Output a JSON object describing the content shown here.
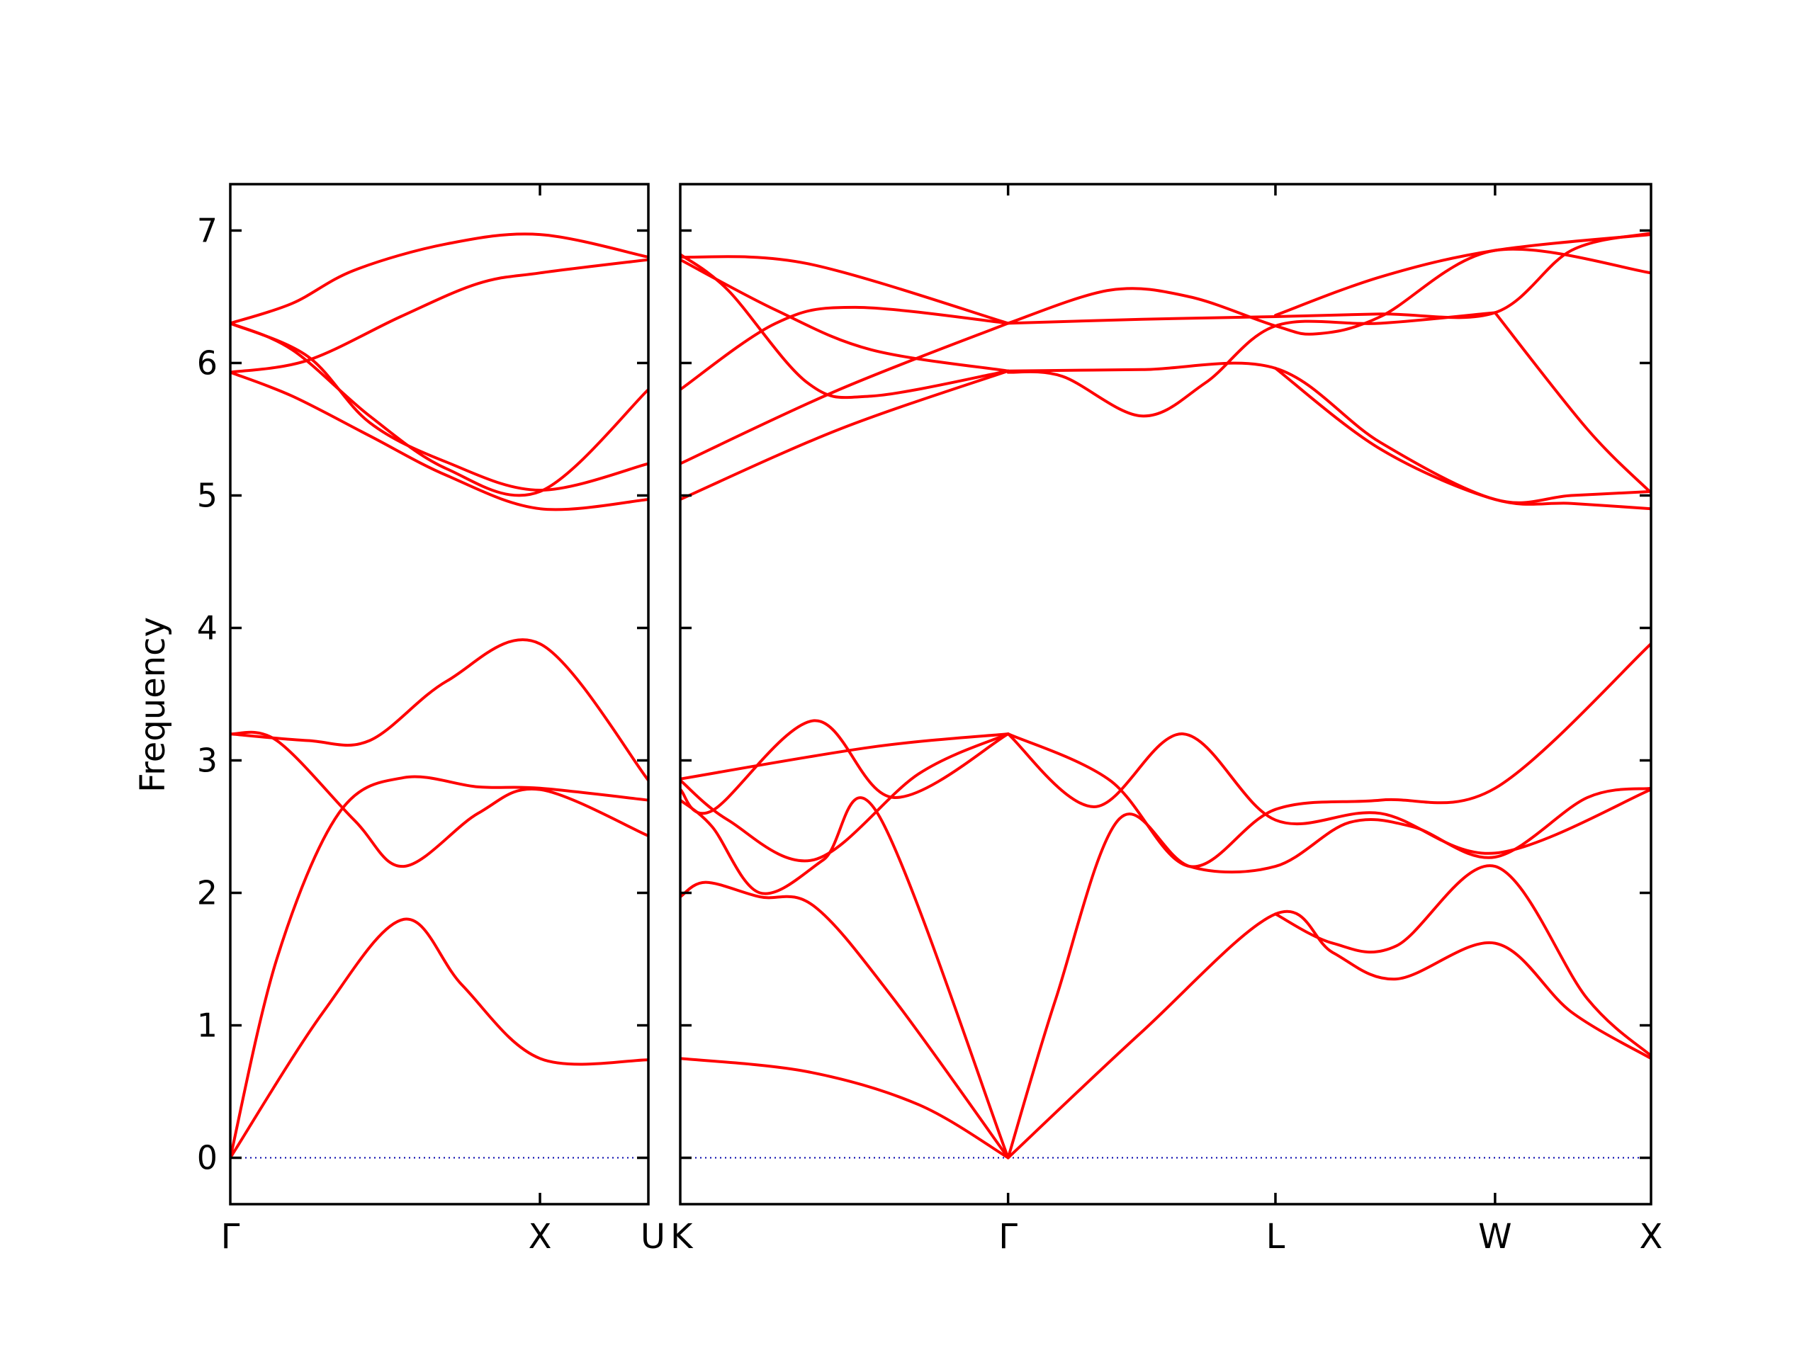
{
  "colors": {
    "band": "#ff0000",
    "zero_line": "#0000aa",
    "frame": "#000000"
  },
  "chart_data": {
    "type": "line",
    "title": "",
    "ylabel": "Frequency",
    "ylim": [
      -0.35,
      7.35
    ],
    "yticks": [
      0,
      1,
      2,
      3,
      4,
      5,
      6,
      7
    ],
    "grid": false,
    "legend": "none",
    "zero_line": {
      "y": 0,
      "style": "dotted"
    },
    "panels": [
      {
        "id": "gamma-x-u",
        "xlim": [
          0,
          1.35
        ],
        "kpoints": [
          {
            "label": "Γ",
            "x": 0
          },
          {
            "label": "X",
            "x": 1.0
          },
          {
            "label": "U",
            "x": 1.35
          }
        ],
        "bands": [
          {
            "x": [
              0,
              0.3,
              0.56,
              0.75,
              1.0,
              1.35
            ],
            "y": [
              0,
              1.1,
              1.8,
              1.3,
              0.75,
              0.74
            ]
          },
          {
            "x": [
              0,
              0.15,
              0.35,
              0.56,
              0.8,
              1.0,
              1.35
            ],
            "y": [
              0,
              1.5,
              2.6,
              2.87,
              2.8,
              2.79,
              2.7
            ]
          },
          {
            "x": [
              0,
              0.15,
              0.4,
              0.56,
              0.8,
              1.0,
              1.35
            ],
            "y": [
              3.2,
              3.15,
              2.55,
              2.2,
              2.6,
              2.78,
              2.43
            ]
          },
          {
            "x": [
              0,
              0.25,
              0.45,
              0.7,
              1.0,
              1.35
            ],
            "y": [
              3.2,
              3.15,
              3.15,
              3.6,
              3.88,
              2.85
            ]
          },
          {
            "x": [
              0,
              0.2,
              0.45,
              0.7,
              1.0,
              1.35
            ],
            "y": [
              5.93,
              5.75,
              5.45,
              5.15,
              4.9,
              4.97
            ]
          },
          {
            "x": [
              0,
              0.25,
              0.45,
              0.7,
              1.0,
              1.35
            ],
            "y": [
              6.3,
              6.05,
              5.55,
              5.25,
              5.04,
              5.24
            ]
          },
          {
            "x": [
              0,
              0.25,
              0.55,
              0.8,
              1.0,
              1.35
            ],
            "y": [
              5.93,
              6.02,
              6.35,
              6.6,
              6.68,
              6.78
            ]
          },
          {
            "x": [
              0,
              0.2,
              0.4,
              0.7,
              1.0,
              1.35
            ],
            "y": [
              6.3,
              6.45,
              6.7,
              6.9,
              6.97,
              6.8
            ]
          },
          {
            "x": [
              0,
              0.2,
              0.45,
              0.7,
              1.0,
              1.35
            ],
            "y": [
              6.3,
              6.1,
              5.6,
              5.2,
              5.03,
              5.8
            ]
          }
        ]
      },
      {
        "id": "k-gamma-l-w-x",
        "xlim": [
          0,
          3.05
        ],
        "kpoints": [
          {
            "label": "K",
            "x": 0
          },
          {
            "label": "Γ",
            "x": 1.03
          },
          {
            "label": "L",
            "x": 1.87
          },
          {
            "label": "W",
            "x": 2.56
          },
          {
            "label": "X",
            "x": 3.05
          }
        ],
        "bands": [
          {
            "x": [
              0,
              0.4,
              0.75,
              1.03
            ],
            "y": [
              0.75,
              0.65,
              0.4,
              0
            ]
          },
          {
            "x": [
              1.03,
              1.45,
              1.87,
              2.05,
              2.25,
              2.56,
              2.8,
              3.05
            ],
            "y": [
              0,
              0.95,
              1.84,
              1.55,
              1.35,
              1.62,
              1.1,
              0.75
            ]
          },
          {
            "x": [
              1.87,
              2.05,
              2.25,
              2.56,
              2.85,
              3.05
            ],
            "y": [
              1.84,
              1.62,
              1.6,
              2.2,
              1.2,
              0.77
            ]
          },
          {
            "x": [
              0,
              0.08,
              0.25,
              0.42,
              0.67,
              1.03
            ],
            "y": [
              1.97,
              2.08,
              1.97,
              1.9,
              1.2,
              0
            ]
          },
          {
            "x": [
              1.03,
              1.18,
              1.38,
              1.6,
              1.87,
              2.1,
              2.3,
              2.56,
              2.85,
              3.05
            ],
            "y": [
              0,
              1.2,
              2.56,
              2.2,
              2.2,
              2.53,
              2.5,
              2.27,
              2.72,
              2.79
            ]
          },
          {
            "x": [
              0,
              0.1,
              0.25,
              0.45,
              0.62,
              1.03
            ],
            "y": [
              2.7,
              2.5,
              2.0,
              2.25,
              2.6,
              0
            ]
          },
          {
            "x": [
              0,
              0.15,
              0.42,
              0.75,
              1.03
            ],
            "y": [
              2.85,
              2.55,
              2.25,
              2.9,
              3.2
            ]
          },
          {
            "x": [
              0,
              0.1,
              0.42,
              0.67,
              1.03
            ],
            "y": [
              2.78,
              2.62,
              3.3,
              2.72,
              3.2
            ]
          },
          {
            "x": [
              1.03,
              1.3,
              1.58,
              1.87,
              2.2,
              2.56,
              3.05
            ],
            "y": [
              3.2,
              2.65,
              3.2,
              2.55,
              2.6,
              2.3,
              2.78
            ]
          },
          {
            "x": [
              1.03,
              1.35,
              1.6,
              1.87,
              2.2,
              2.56,
              3.05
            ],
            "y": [
              3.2,
              2.85,
              2.2,
              2.63,
              2.7,
              2.79,
              3.88
            ]
          },
          {
            "x": [
              0,
              0.6,
              1.03
            ],
            "y": [
              2.86,
              3.1,
              3.2
            ]
          },
          {
            "x": [
              1.03,
              1.45,
              1.87,
              2.2,
              2.56,
              2.8,
              3.05
            ],
            "y": [
              5.94,
              5.95,
              5.96,
              5.4,
              4.97,
              5.0,
              5.03
            ]
          },
          {
            "x": [
              1.87,
              2.2,
              2.56,
              2.8,
              3.05
            ],
            "y": [
              5.96,
              5.35,
              4.97,
              4.94,
              4.9
            ]
          },
          {
            "x": [
              0,
              0.5,
              1.03
            ],
            "y": [
              4.97,
              5.5,
              5.94
            ]
          },
          {
            "x": [
              0,
              0.5,
              1.03
            ],
            "y": [
              5.24,
              5.8,
              6.3
            ]
          },
          {
            "x": [
              0,
              0.3,
              0.55,
              1.03
            ],
            "y": [
              5.8,
              6.3,
              6.42,
              6.3
            ]
          },
          {
            "x": [
              0,
              0.3,
              0.6,
              1.03
            ],
            "y": [
              6.78,
              6.4,
              6.1,
              5.94
            ]
          },
          {
            "x": [
              0,
              0.15,
              0.4,
              0.6,
              1.03
            ],
            "y": [
              6.82,
              6.55,
              5.85,
              5.75,
              5.94
            ]
          },
          {
            "x": [
              0,
              0.4,
              1.03
            ],
            "y": [
              6.8,
              6.75,
              6.3
            ]
          },
          {
            "x": [
              1.03,
              1.45,
              1.87,
              2.2,
              2.56,
              2.8,
              3.05
            ],
            "y": [
              6.3,
              6.33,
              6.35,
              6.37,
              6.38,
              6.85,
              6.98
            ]
          },
          {
            "x": [
              1.03,
              1.2,
              1.45,
              1.65,
              1.87,
              2.2,
              2.56
            ],
            "y": [
              5.93,
              5.9,
              5.6,
              5.85,
              6.28,
              6.3,
              6.38
            ]
          },
          {
            "x": [
              1.03,
              1.35,
              1.6,
              1.87,
              2.0,
              2.2,
              2.56,
              3.05
            ],
            "y": [
              6.3,
              6.55,
              6.5,
              6.28,
              6.22,
              6.35,
              6.85,
              6.68
            ]
          },
          {
            "x": [
              1.87,
              2.2,
              2.56,
              3.05
            ],
            "y": [
              6.36,
              6.65,
              6.85,
              6.97
            ]
          },
          {
            "x": [
              2.56,
              2.85,
              3.05
            ],
            "y": [
              6.38,
              5.5,
              5.02
            ]
          }
        ]
      }
    ]
  }
}
